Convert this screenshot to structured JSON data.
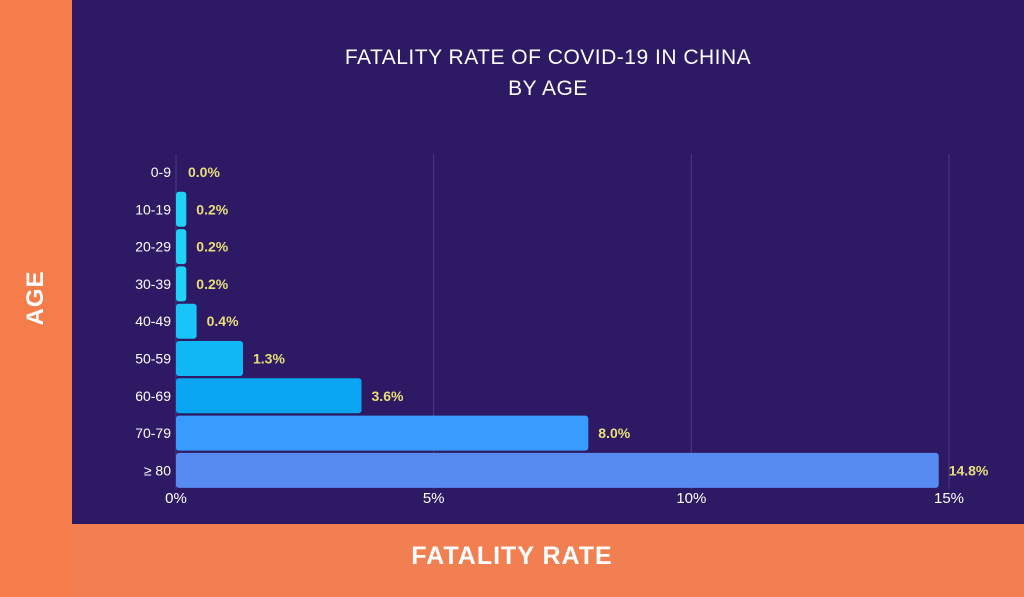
{
  "chart_data": {
    "type": "bar",
    "orientation": "horizontal",
    "title_line1": "FATALITY RATE OF COVID-19 IN CHINA",
    "title_line2": "BY AGE",
    "xlabel": "FATALITY RATE",
    "ylabel": "AGE",
    "categories": [
      "0-9",
      "10-19",
      "20-29",
      "30-39",
      "40-49",
      "50-59",
      "60-69",
      "70-79",
      "≥ 80"
    ],
    "values": [
      0.0,
      0.2,
      0.2,
      0.2,
      0.4,
      1.3,
      3.6,
      8.0,
      14.8
    ],
    "value_labels": [
      "0.0%",
      "0.2%",
      "0.2%",
      "0.2%",
      "0.4%",
      "1.3%",
      "3.6%",
      "8.0%",
      "14.8%"
    ],
    "xticks": [
      0,
      5,
      10,
      15
    ],
    "xtick_labels": [
      "0%",
      "5%",
      "10%",
      "15%"
    ],
    "xlim": [
      0,
      15
    ],
    "grid": true,
    "bar_colors": [
      "#1fd3f7",
      "#1fd3f7",
      "#1fd3f7",
      "#1fd3f7",
      "#18c4f8",
      "#10b8f6",
      "#0aa6f2",
      "#3a9bff",
      "#588bf2"
    ],
    "label_color": "#e8de7a"
  }
}
